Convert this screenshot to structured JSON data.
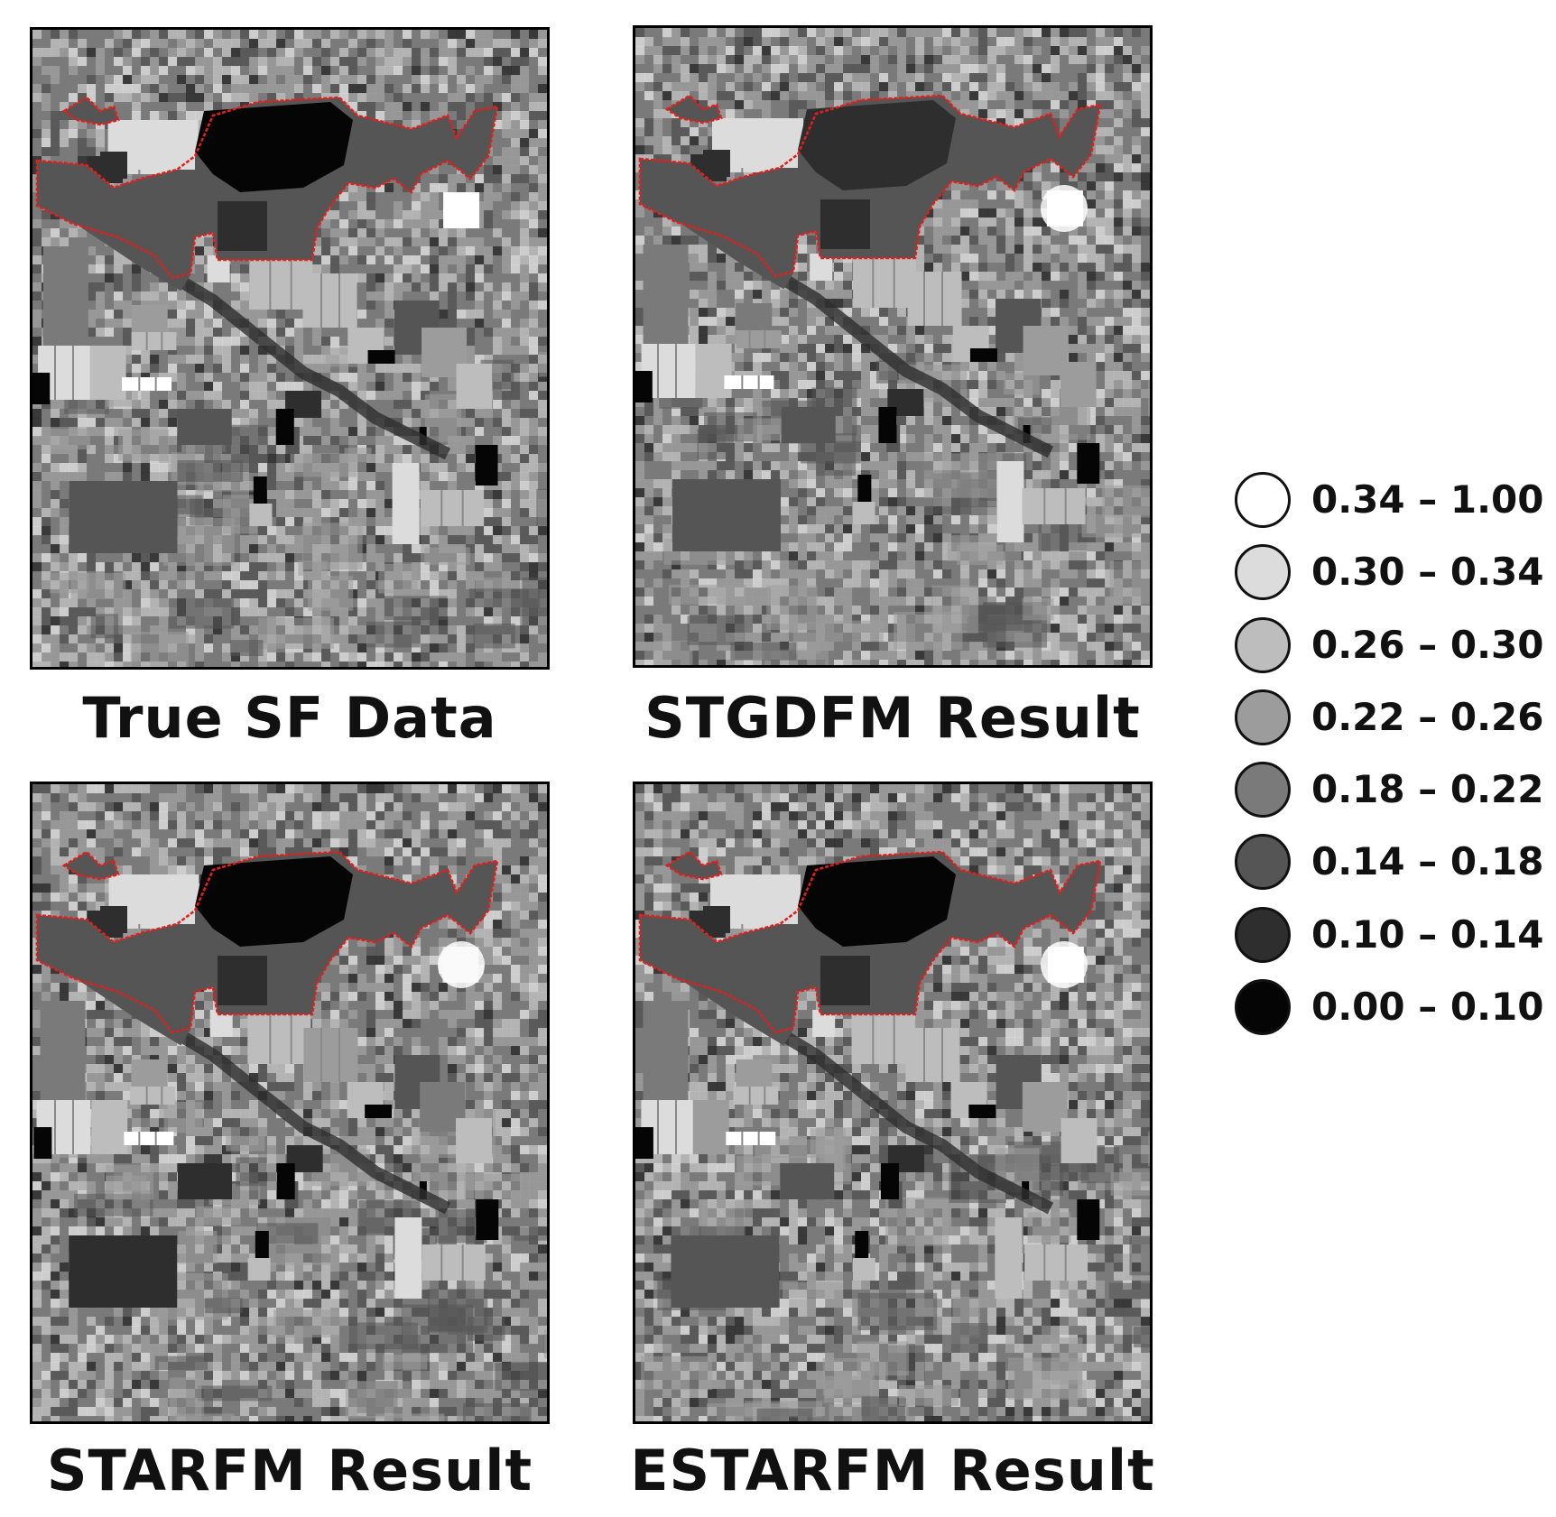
{
  "panels": [
    {
      "id": "true-sf",
      "caption": "True SF Data",
      "variant": 0
    },
    {
      "id": "stgdfm",
      "caption": "STGDFM Result",
      "variant": 1
    },
    {
      "id": "starfm",
      "caption": "STARFM Result",
      "variant": 2
    },
    {
      "id": "estarfm",
      "caption": "ESTARFM Result",
      "variant": 3
    }
  ],
  "legend": {
    "items": [
      {
        "label": "0.34 – 1.00",
        "color": "#ffffff"
      },
      {
        "label": "0.30 – 0.34",
        "color": "#dcdcdc"
      },
      {
        "label": "0.26 – 0.30",
        "color": "#bdbdbd"
      },
      {
        "label": "0.22 – 0.26",
        "color": "#9c9c9c"
      },
      {
        "label": "0.18 – 0.22",
        "color": "#7a7a7a"
      },
      {
        "label": "0.14 – 0.18",
        "color": "#555555"
      },
      {
        "label": "0.10 – 0.14",
        "color": "#2e2e2e"
      },
      {
        "label": "0.00 – 0.10",
        "color": "#050505"
      }
    ]
  },
  "colors": {
    "boundary": "#e0201c",
    "background": "#ffffff"
  }
}
